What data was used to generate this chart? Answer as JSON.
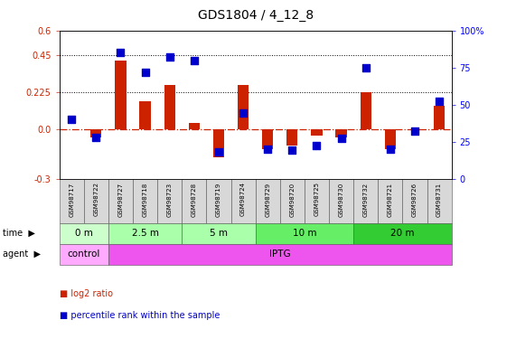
{
  "title": "GDS1804 / 4_12_8",
  "samples": [
    "GSM98717",
    "GSM98722",
    "GSM98727",
    "GSM98718",
    "GSM98723",
    "GSM98728",
    "GSM98719",
    "GSM98724",
    "GSM98729",
    "GSM98720",
    "GSM98725",
    "GSM98730",
    "GSM98732",
    "GSM98721",
    "GSM98726",
    "GSM98731"
  ],
  "log2_ratio": [
    0.0,
    -0.05,
    0.42,
    0.17,
    0.27,
    0.04,
    -0.17,
    0.27,
    -0.12,
    -0.1,
    -0.04,
    -0.05,
    0.225,
    -0.12,
    0.0,
    0.14
  ],
  "pct_rank": [
    40,
    28,
    85,
    72,
    82,
    80,
    18,
    44,
    20,
    19,
    22,
    27,
    75,
    20,
    32,
    52
  ],
  "ylim_left": [
    -0.3,
    0.6
  ],
  "ylim_right": [
    0,
    100
  ],
  "yticks_left": [
    -0.3,
    0.0,
    0.225,
    0.45,
    0.6
  ],
  "yticks_right": [
    0,
    25,
    50,
    75,
    100
  ],
  "hlines": [
    0.225,
    0.45
  ],
  "bar_color": "#cc2200",
  "dot_color": "#0000cc",
  "zero_line_color": "#cc2200",
  "time_groups": [
    {
      "label": "0 m",
      "start": 0,
      "end": 2,
      "color": "#ccffcc"
    },
    {
      "label": "2.5 m",
      "start": 2,
      "end": 5,
      "color": "#aaffaa"
    },
    {
      "label": "5 m",
      "start": 5,
      "end": 8,
      "color": "#aaffaa"
    },
    {
      "label": "10 m",
      "start": 8,
      "end": 12,
      "color": "#66ee66"
    },
    {
      "label": "20 m",
      "start": 12,
      "end": 16,
      "color": "#33cc33"
    }
  ],
  "agent_groups": [
    {
      "label": "control",
      "start": 0,
      "end": 2,
      "color": "#ffaaff"
    },
    {
      "label": "IPTG",
      "start": 2,
      "end": 16,
      "color": "#ee55ee"
    }
  ],
  "legend": [
    {
      "label": "log2 ratio",
      "color": "#cc2200"
    },
    {
      "label": "percentile rank within the sample",
      "color": "#0000cc"
    }
  ]
}
